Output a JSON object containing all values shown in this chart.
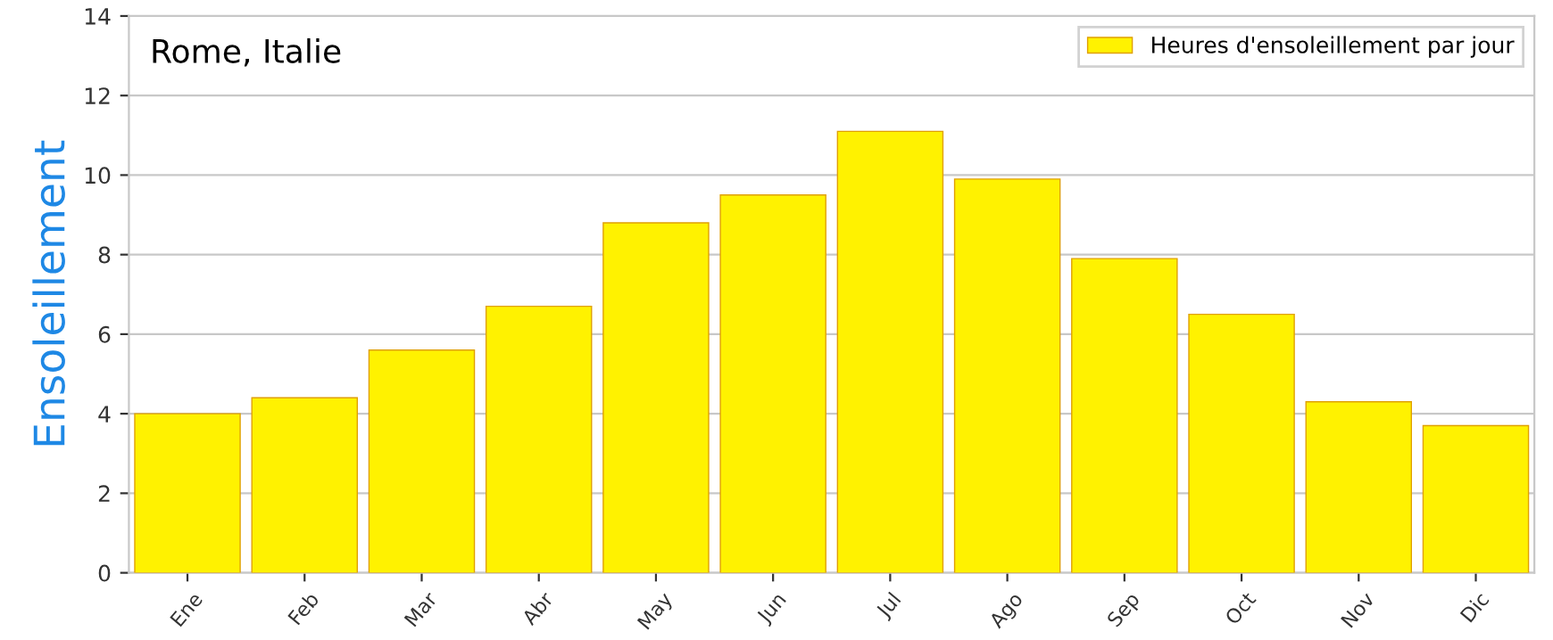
{
  "chart_data": {
    "type": "bar",
    "title": "Rome, Italie",
    "ylabel": "Ensoleillement",
    "categories": [
      "Ene",
      "Feb",
      "Mar",
      "Abr",
      "May",
      "Jun",
      "Jul",
      "Ago",
      "Sep",
      "Oct",
      "Nov",
      "Dic"
    ],
    "series": [
      {
        "name": "Heures d'ensoleillement par jour",
        "color": "#fff200",
        "values": [
          4.0,
          4.4,
          5.6,
          6.7,
          8.8,
          9.5,
          11.1,
          9.9,
          7.9,
          6.5,
          4.3,
          3.7
        ]
      }
    ],
    "ylim": [
      0,
      14
    ],
    "yticks": [
      0,
      2,
      4,
      6,
      8,
      10,
      12,
      14
    ],
    "grid": "y",
    "legend": "top right"
  }
}
